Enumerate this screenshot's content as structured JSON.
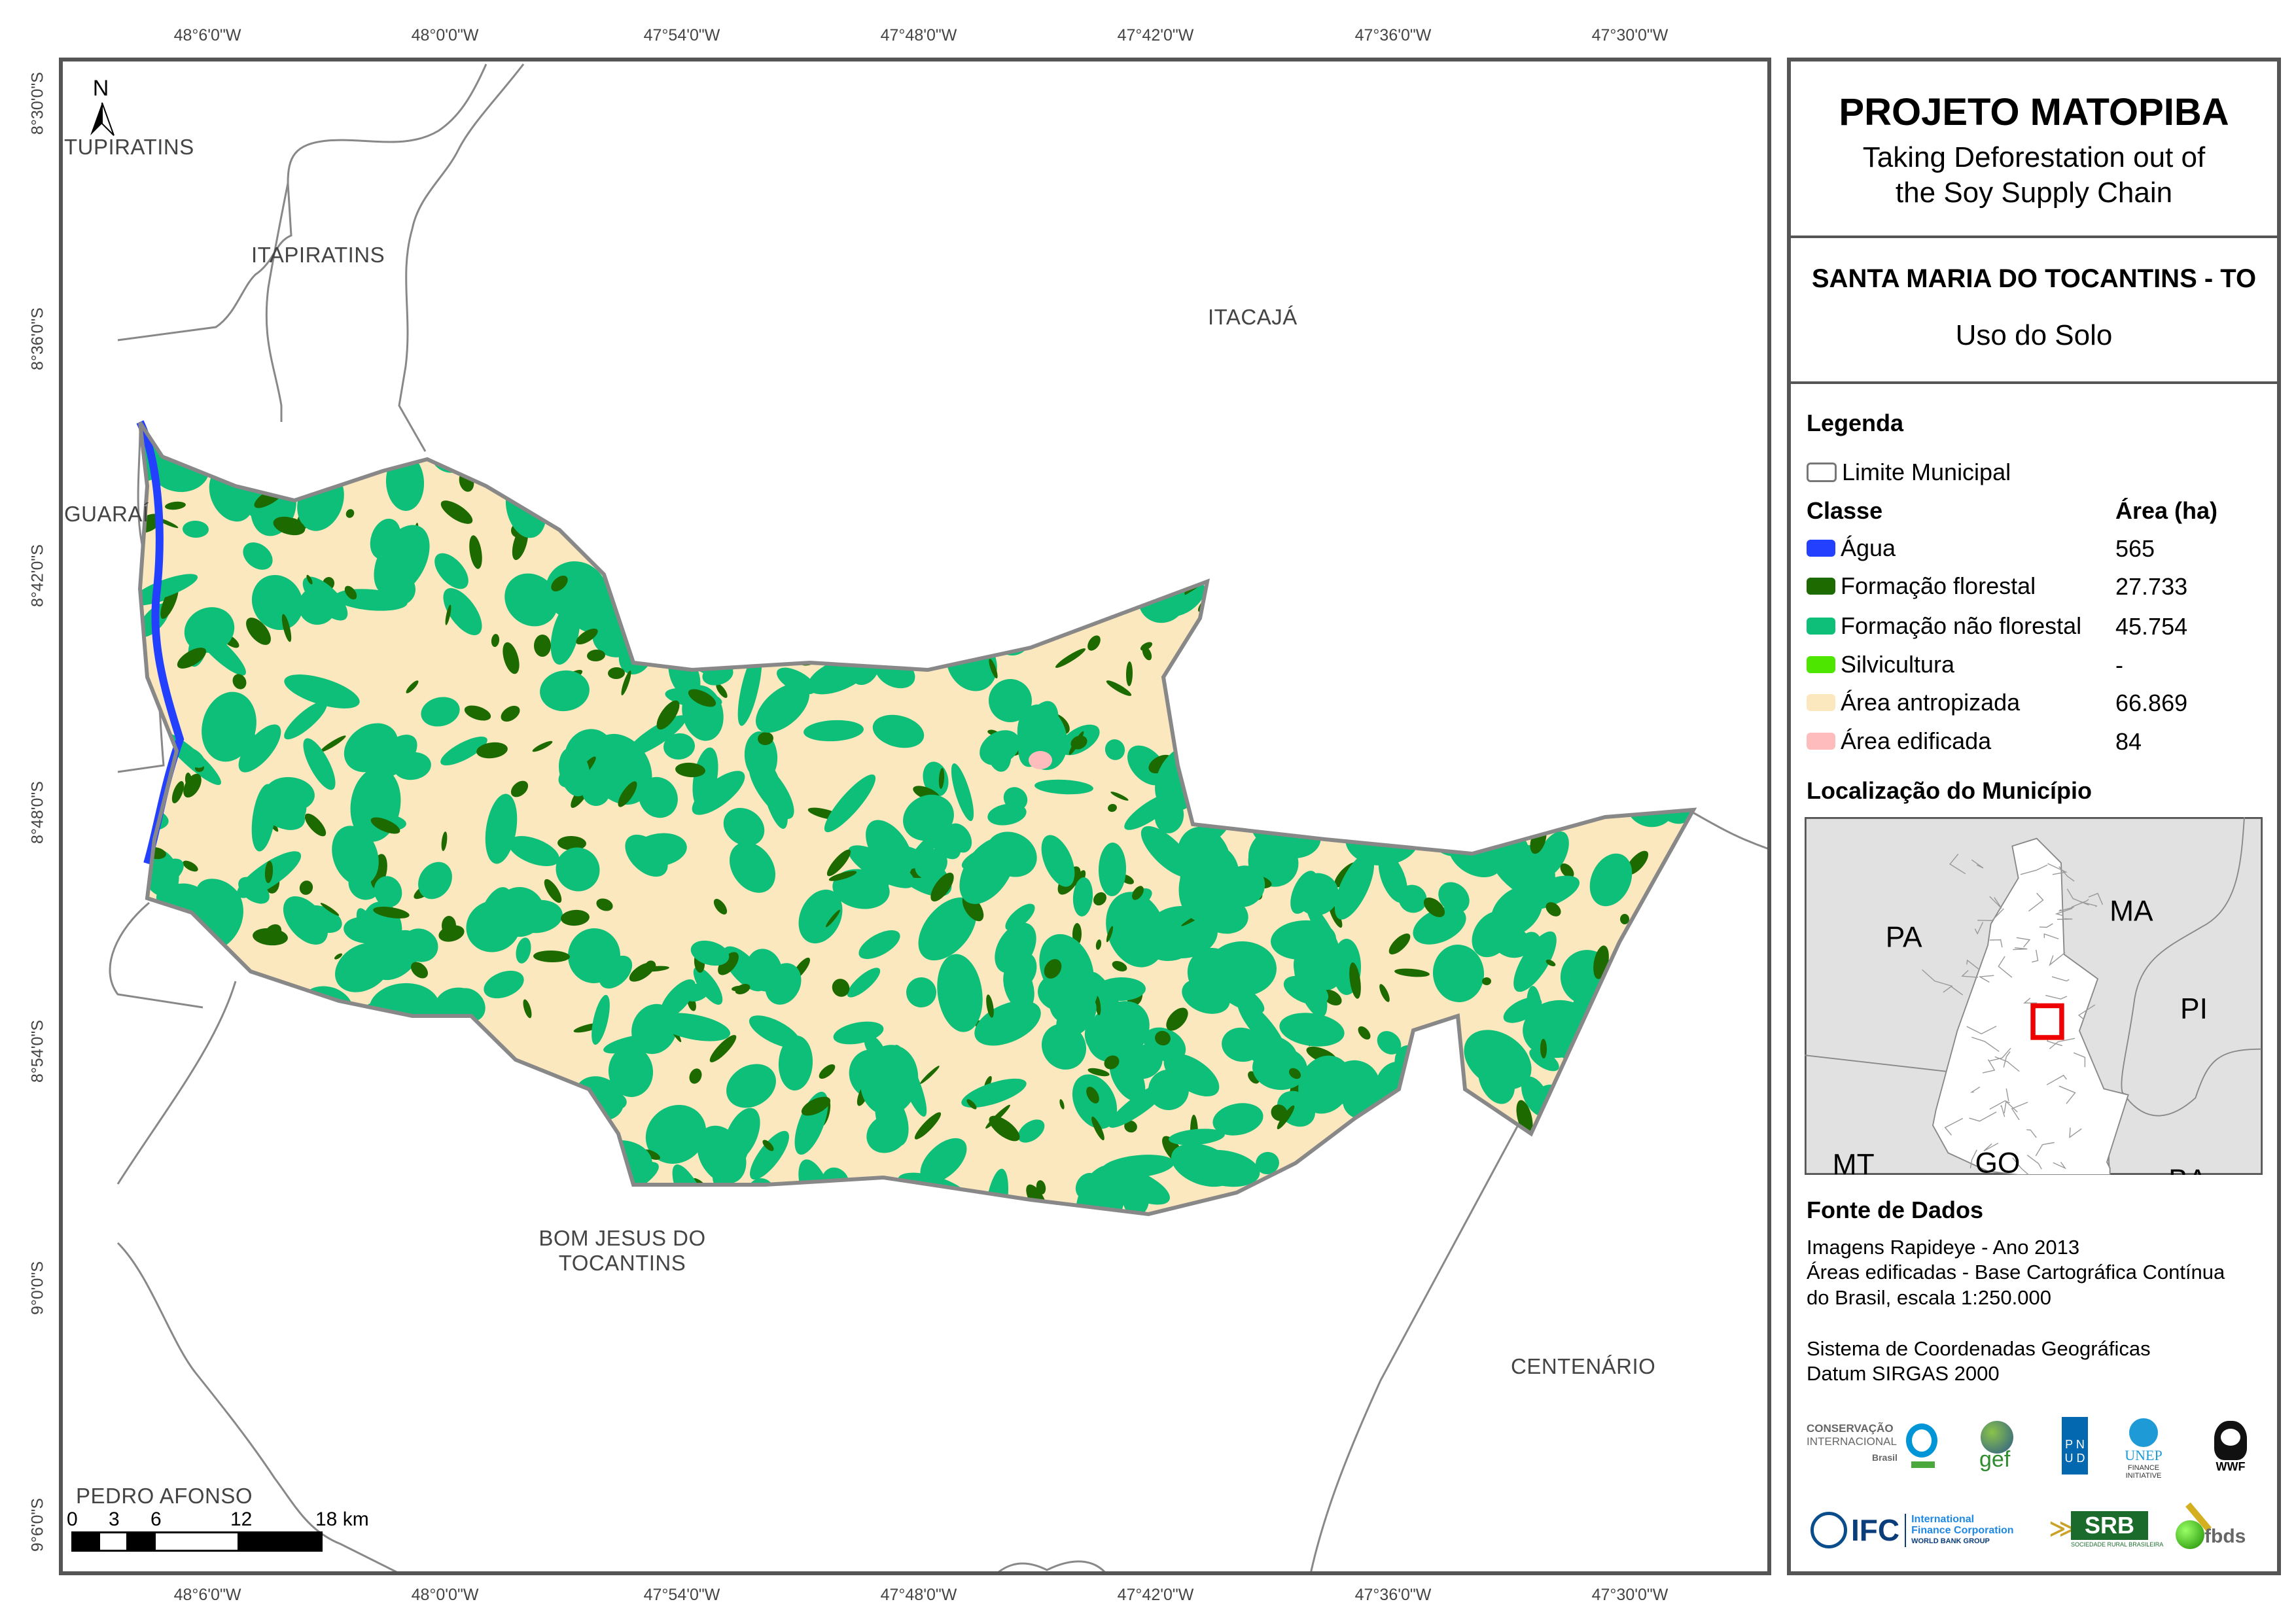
{
  "map": {
    "top_ticks": [
      "48°6'0\"W",
      "48°0'0\"W",
      "47°54'0\"W",
      "47°48'0\"W",
      "47°42'0\"W",
      "47°36'0\"W",
      "47°30'0\"W"
    ],
    "bottom_ticks": [
      "48°6'0\"W",
      "48°0'0\"W",
      "47°54'0\"W",
      "47°48'0\"W",
      "47°42'0\"W",
      "47°36'0\"W",
      "47°30'0\"W"
    ],
    "left_ticks": [
      "8°30'0\"S",
      "8°36'0\"S",
      "8°42'0\"S",
      "8°48'0\"S",
      "8°54'0\"S",
      "9°0'0\"S",
      "9°6'0\"S"
    ],
    "north_label": "N",
    "places": {
      "tupiratins": "TUPIRATINS",
      "itapiratins": "ITAPIRATINS",
      "itacaja": "ITACAJÁ",
      "guarai": "GUARAÍ",
      "bom_jesus_1": "BOM JESUS DO",
      "bom_jesus_2": "TOCANTINS",
      "centenario": "CENTENÁRIO",
      "pedro_afonso": "PEDRO AFONSO"
    },
    "scale_bar": {
      "labels": [
        "0",
        "3",
        "6",
        "12",
        "18 km"
      ]
    }
  },
  "panel": {
    "title": "PROJETO MATOPIBA",
    "subtitle_1": "Taking Deforestation out of",
    "subtitle_2": "the Soy Supply Chain",
    "municipality": "SANTA MARIA DO TOCANTINS - TO",
    "theme": "Uso do Solo",
    "legend_title": "Legenda",
    "boundary_label": "Limite Municipal",
    "class_header": "Classe",
    "area_header": "Área (ha)",
    "classes": [
      {
        "label": "Água",
        "area": "565",
        "color": "#2340ff"
      },
      {
        "label": "Formação florestal",
        "area": "27.733",
        "color": "#1d6b00"
      },
      {
        "label": "Formação não florestal",
        "area": "45.754",
        "color": "#0dbf78"
      },
      {
        "label": "Silvicultura",
        "area": "-",
        "color": "#4ce600"
      },
      {
        "label": "Área antropizada",
        "area": "66.869",
        "color": "#fce8bf"
      },
      {
        "label": "Área edificada",
        "area": "84",
        "color": "#ffbcbc"
      }
    ],
    "location_title": "Localização do Município",
    "inset_labels": {
      "pa": "PA",
      "ma": "MA",
      "pi": "PI",
      "mt": "MT",
      "ba": "BA",
      "go": "GO"
    },
    "sources_title": "Fonte de Dados",
    "sources": [
      "Imagens Rapideye - Ano 2013",
      "Áreas edificadas - Base Cartográfica Contínua",
      "do Brasil, escala 1:250.000",
      "Sistema de Coordenadas Geográficas",
      "Datum SIRGAS 2000"
    ],
    "logos": {
      "ci_1": "CONSERVAÇÃO",
      "ci_2": "INTERNACIONAL",
      "ci_3": "Brasil",
      "gef": "gef",
      "pnud_1": "P N",
      "pnud_2": "U D",
      "unep_1": "UNEP",
      "unep_2": "FINANCE",
      "unep_3": "INITIATIVE",
      "wwf": "WWF",
      "ifc": "IFC",
      "ifc_1": "International",
      "ifc_2": "Finance Corporation",
      "ifc_3": "WORLD BANK GROUP",
      "srb": "SRB",
      "srb_sub": "SOCIEDADE RURAL BRASILEIRA",
      "fbds": "fbds"
    }
  }
}
